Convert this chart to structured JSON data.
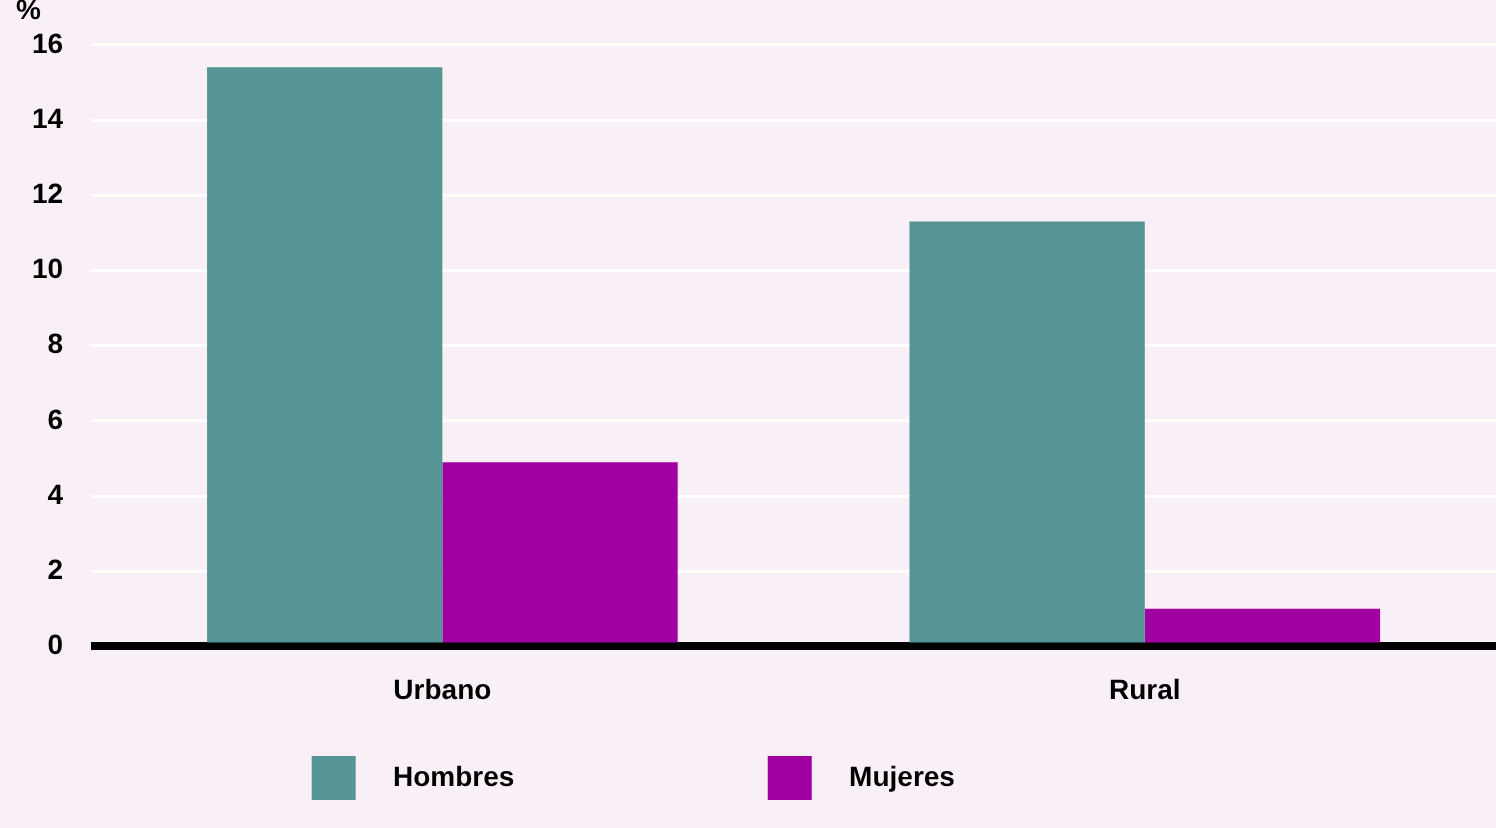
{
  "chart_data": {
    "type": "bar",
    "ylabel": "%",
    "categories": [
      "Urbano",
      "Rural"
    ],
    "series": [
      {
        "name": "Hombres",
        "color": "#559595",
        "values": [
          15.4,
          11.3
        ]
      },
      {
        "name": "Mujeres",
        "color": "#a000a0",
        "values": [
          4.9,
          1.0
        ]
      }
    ],
    "ylim": [
      0,
      16
    ],
    "yticks": [
      0,
      2,
      4,
      6,
      8,
      10,
      12,
      14,
      16
    ],
    "grid": "y",
    "legend": "bottom"
  }
}
